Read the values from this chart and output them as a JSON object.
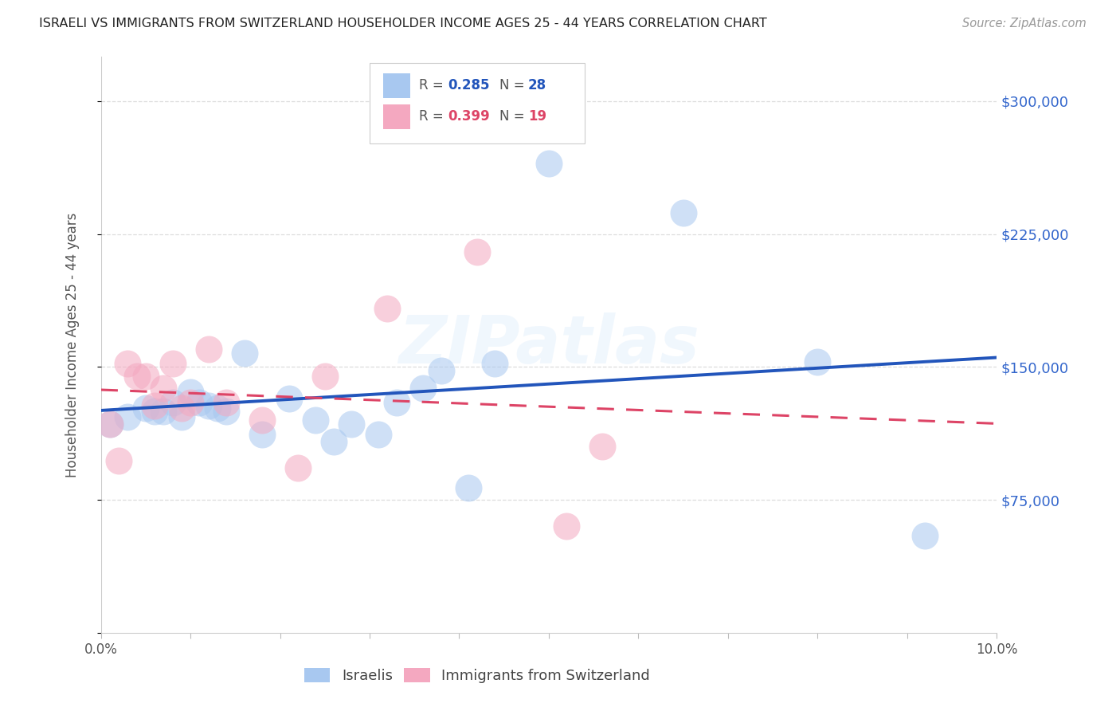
{
  "title": "ISRAELI VS IMMIGRANTS FROM SWITZERLAND HOUSEHOLDER INCOME AGES 25 - 44 YEARS CORRELATION CHART",
  "source": "Source: ZipAtlas.com",
  "ylabel": "Householder Income Ages 25 - 44 years",
  "xlim": [
    0.0,
    0.1
  ],
  "ylim": [
    0,
    325000
  ],
  "legend_r1": "0.285",
  "legend_n1": "28",
  "legend_r2": "0.399",
  "legend_n2": "19",
  "israelis_x": [
    0.001,
    0.003,
    0.005,
    0.006,
    0.007,
    0.008,
    0.009,
    0.01,
    0.011,
    0.012,
    0.013,
    0.014,
    0.016,
    0.018,
    0.021,
    0.024,
    0.026,
    0.028,
    0.031,
    0.033,
    0.036,
    0.038,
    0.041,
    0.044,
    0.05,
    0.065,
    0.08,
    0.092
  ],
  "israelis_y": [
    118000,
    122000,
    127000,
    125000,
    125000,
    130000,
    122000,
    136000,
    130000,
    128000,
    127000,
    125000,
    158000,
    112000,
    132000,
    120000,
    108000,
    118000,
    112000,
    130000,
    138000,
    148000,
    82000,
    152000,
    265000,
    237000,
    153000,
    55000
  ],
  "swiss_x": [
    0.001,
    0.002,
    0.003,
    0.004,
    0.005,
    0.006,
    0.007,
    0.008,
    0.009,
    0.01,
    0.012,
    0.014,
    0.018,
    0.022,
    0.025,
    0.032,
    0.042,
    0.052,
    0.056
  ],
  "swiss_y": [
    118000,
    97000,
    152000,
    145000,
    145000,
    128000,
    138000,
    152000,
    127000,
    130000,
    160000,
    130000,
    120000,
    93000,
    145000,
    183000,
    215000,
    60000,
    105000
  ],
  "israeli_color": "#A8C8F0",
  "swiss_color": "#F4A8C0",
  "israeli_line_color": "#2255BB",
  "swiss_line_color": "#DD4466",
  "bg_color": "#FFFFFF",
  "grid_color": "#DDDDDD",
  "ytick_positions": [
    0,
    75000,
    150000,
    225000,
    300000
  ],
  "ytick_labels": [
    "",
    "$75,000",
    "$150,000",
    "$225,000",
    "$300,000"
  ],
  "watermark": "ZIPatlas"
}
